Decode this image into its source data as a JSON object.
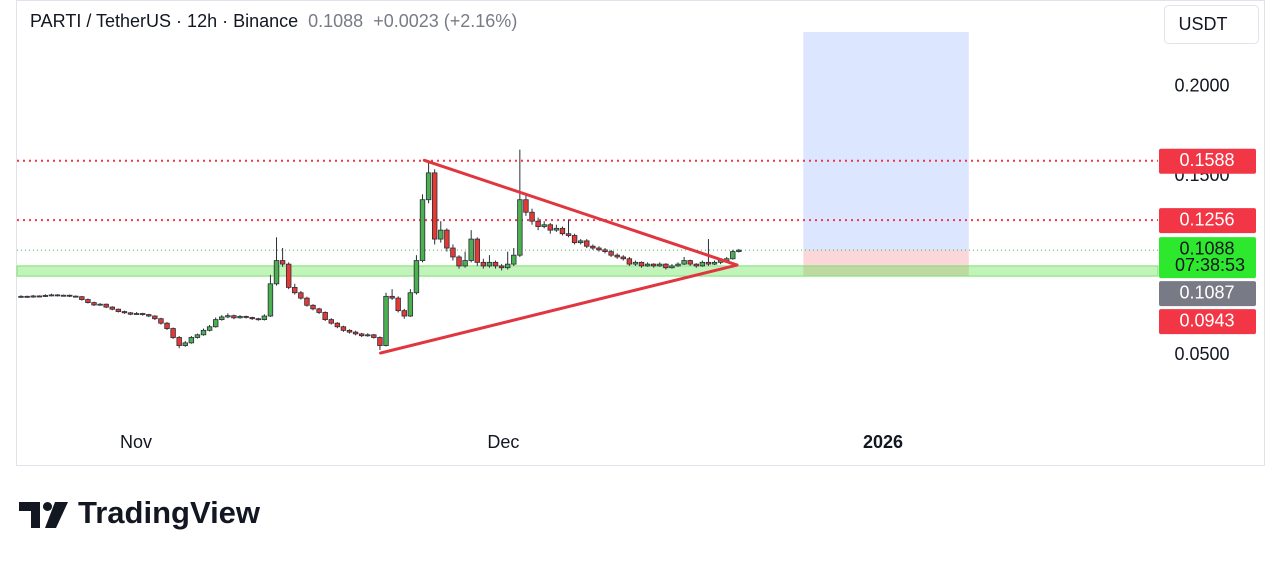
{
  "chart_data": {
    "type": "candlestick",
    "title": "PARTI / TetherUS · 12h · Binance",
    "change": "+0.0023 (+2.16%)",
    "currency": "USDT",
    "countdown": "07:38:53",
    "brand": "TradingView",
    "candle_colors": {
      "up": "#4caf50",
      "down": "#e53935"
    },
    "xlim": [
      -0.66,
      186.9
    ],
    "ylim": [
      0.0111,
      0.2486
    ],
    "yticks": [
      {
        "value": 0.2,
        "label": "0.2000"
      },
      {
        "value": 0.15,
        "label": "0.1500"
      },
      {
        "value": 0.05,
        "label": "0.0500"
      }
    ],
    "time_labels": [
      {
        "value": 18.9,
        "label": "Nov"
      },
      {
        "value": 79.3,
        "label": "Dec"
      },
      {
        "value": 141.7,
        "label": "2026"
      }
    ],
    "levels": [
      {
        "value": 0.1588,
        "color": "#f23645"
      },
      {
        "value": 0.1256,
        "color": "#f23645"
      }
    ],
    "current_price": {
      "value": 0.1088,
      "color": "#2ee82e"
    },
    "support_zone": {
      "range": [
        0.0943,
        0.1
      ],
      "color": "#f23645"
    },
    "position": {
      "entry": 0.1087,
      "target": 0.2307,
      "stop": 0.0943,
      "from": 128.6,
      "to": 155.8
    },
    "trendlines": [
      [
        [
          66.3,
          0.159
        ],
        [
          117.7,
          0.1005
        ]
      ],
      [
        [
          59.1,
          0.0513
        ],
        [
          117.7,
          0.1005
        ]
      ]
    ],
    "trendline_color": "#e0363f",
    "candles": [
      [
        0.0828,
        0.0836,
        0.0822,
        0.083
      ],
      [
        0.083,
        0.0834,
        0.0822,
        0.0826
      ],
      [
        0.0826,
        0.0838,
        0.0822,
        0.0832
      ],
      [
        0.0832,
        0.0836,
        0.0825,
        0.0829
      ],
      [
        0.0829,
        0.0842,
        0.0826,
        0.0835
      ],
      [
        0.0835,
        0.0845,
        0.083,
        0.0838
      ],
      [
        0.0838,
        0.0842,
        0.083,
        0.0834
      ],
      [
        0.0834,
        0.084,
        0.083,
        0.0836
      ],
      [
        0.0836,
        0.084,
        0.0826,
        0.0831
      ],
      [
        0.0831,
        0.0835,
        0.0824,
        0.0828
      ],
      [
        0.0828,
        0.0832,
        0.0806,
        0.0812
      ],
      [
        0.0812,
        0.0818,
        0.079,
        0.0795
      ],
      [
        0.0795,
        0.08,
        0.0776,
        0.0782
      ],
      [
        0.0782,
        0.0792,
        0.0778,
        0.0786
      ],
      [
        0.0786,
        0.079,
        0.0764,
        0.077
      ],
      [
        0.077,
        0.0775,
        0.0752,
        0.0758
      ],
      [
        0.0758,
        0.0762,
        0.074,
        0.0745
      ],
      [
        0.0745,
        0.075,
        0.0732,
        0.0738
      ],
      [
        0.0738,
        0.0742,
        0.0725,
        0.073
      ],
      [
        0.073,
        0.0742,
        0.0726,
        0.0734
      ],
      [
        0.0734,
        0.0738,
        0.0722,
        0.0728
      ],
      [
        0.0728,
        0.0732,
        0.0714,
        0.072
      ],
      [
        0.072,
        0.0724,
        0.0698,
        0.0705
      ],
      [
        0.0705,
        0.071,
        0.0672,
        0.068
      ],
      [
        0.068,
        0.0686,
        0.0642,
        0.065
      ],
      [
        0.065,
        0.0656,
        0.0592,
        0.06
      ],
      [
        0.06,
        0.0608,
        0.054,
        0.0555
      ],
      [
        0.0555,
        0.058,
        0.0548,
        0.057
      ],
      [
        0.057,
        0.0608,
        0.0565,
        0.06
      ],
      [
        0.06,
        0.0622,
        0.0594,
        0.0615
      ],
      [
        0.0615,
        0.065,
        0.061,
        0.064
      ],
      [
        0.064,
        0.067,
        0.0634,
        0.066
      ],
      [
        0.066,
        0.0712,
        0.0655,
        0.07
      ],
      [
        0.07,
        0.0725,
        0.0694,
        0.0715
      ],
      [
        0.0715,
        0.0735,
        0.0708,
        0.0722
      ],
      [
        0.0722,
        0.0728,
        0.0702,
        0.071
      ],
      [
        0.071,
        0.0725,
        0.0705,
        0.0718
      ],
      [
        0.0718,
        0.0722,
        0.0706,
        0.0712
      ],
      [
        0.0712,
        0.0716,
        0.0698,
        0.0705
      ],
      [
        0.0705,
        0.071,
        0.0694,
        0.07
      ],
      [
        0.07,
        0.073,
        0.0695,
        0.072
      ],
      [
        0.072,
        0.095,
        0.0715,
        0.09
      ],
      [
        0.09,
        0.116,
        0.089,
        0.103
      ],
      [
        0.103,
        0.11,
        0.0995,
        0.101
      ],
      [
        0.101,
        0.102,
        0.087,
        0.088
      ],
      [
        0.088,
        0.09,
        0.084,
        0.085
      ],
      [
        0.085,
        0.086,
        0.0812,
        0.082
      ],
      [
        0.082,
        0.0828,
        0.0772,
        0.078
      ],
      [
        0.078,
        0.0786,
        0.0752,
        0.076
      ],
      [
        0.076,
        0.0766,
        0.0732,
        0.074
      ],
      [
        0.074,
        0.0746,
        0.0692,
        0.07
      ],
      [
        0.07,
        0.0708,
        0.0672,
        0.068
      ],
      [
        0.068,
        0.0686,
        0.0652,
        0.066
      ],
      [
        0.066,
        0.0666,
        0.0632,
        0.064
      ],
      [
        0.064,
        0.0646,
        0.0622,
        0.063
      ],
      [
        0.063,
        0.0638,
        0.0612,
        0.062
      ],
      [
        0.062,
        0.0626,
        0.0602,
        0.061
      ],
      [
        0.061,
        0.0624,
        0.0604,
        0.0615
      ],
      [
        0.0615,
        0.062,
        0.0594,
        0.06
      ],
      [
        0.06,
        0.0606,
        0.053,
        0.0555
      ],
      [
        0.0555,
        0.085,
        0.055,
        0.083
      ],
      [
        0.083,
        0.087,
        0.081,
        0.082
      ],
      [
        0.082,
        0.083,
        0.074,
        0.075
      ],
      [
        0.075,
        0.076,
        0.0705,
        0.072
      ],
      [
        0.072,
        0.087,
        0.0715,
        0.085
      ],
      [
        0.085,
        0.106,
        0.084,
        0.103
      ],
      [
        0.103,
        0.14,
        0.102,
        0.137
      ],
      [
        0.137,
        0.159,
        0.135,
        0.152
      ],
      [
        0.152,
        0.154,
        0.112,
        0.115
      ],
      [
        0.115,
        0.125,
        0.113,
        0.12
      ],
      [
        0.12,
        0.121,
        0.108,
        0.11
      ],
      [
        0.11,
        0.112,
        0.103,
        0.105
      ],
      [
        0.105,
        0.106,
        0.0985,
        0.1
      ],
      [
        0.1,
        0.108,
        0.099,
        0.103
      ],
      [
        0.103,
        0.12,
        0.102,
        0.115
      ],
      [
        0.115,
        0.116,
        0.1,
        0.102
      ],
      [
        0.102,
        0.104,
        0.0985,
        0.1
      ],
      [
        0.1,
        0.106,
        0.099,
        0.102
      ],
      [
        0.102,
        0.103,
        0.0985,
        0.1
      ],
      [
        0.1,
        0.101,
        0.0975,
        0.099
      ],
      [
        0.099,
        0.108,
        0.098,
        0.101
      ],
      [
        0.101,
        0.11,
        0.1,
        0.106
      ],
      [
        0.106,
        0.165,
        0.105,
        0.137
      ],
      [
        0.137,
        0.14,
        0.128,
        0.13
      ],
      [
        0.13,
        0.132,
        0.123,
        0.125
      ],
      [
        0.125,
        0.127,
        0.12,
        0.122
      ],
      [
        0.122,
        0.125,
        0.121,
        0.123
      ],
      [
        0.123,
        0.124,
        0.118,
        0.12
      ],
      [
        0.12,
        0.123,
        0.119,
        0.121
      ],
      [
        0.121,
        0.122,
        0.117,
        0.118
      ],
      [
        0.118,
        0.126,
        0.116,
        0.117
      ],
      [
        0.117,
        0.118,
        0.112,
        0.113
      ],
      [
        0.113,
        0.115,
        0.112,
        0.114
      ],
      [
        0.114,
        0.115,
        0.11,
        0.111
      ],
      [
        0.111,
        0.112,
        0.109,
        0.11
      ],
      [
        0.11,
        0.111,
        0.108,
        0.109
      ],
      [
        0.109,
        0.11,
        0.107,
        0.108
      ],
      [
        0.108,
        0.109,
        0.105,
        0.106
      ],
      [
        0.106,
        0.107,
        0.104,
        0.105
      ],
      [
        0.105,
        0.106,
        0.103,
        0.104
      ],
      [
        0.104,
        0.105,
        0.1,
        0.101
      ],
      [
        0.101,
        0.103,
        0.1,
        0.102
      ],
      [
        0.102,
        0.1025,
        0.099,
        0.1
      ],
      [
        0.1,
        0.102,
        0.0995,
        0.101
      ],
      [
        0.101,
        0.1015,
        0.099,
        0.1
      ],
      [
        0.1,
        0.102,
        0.0995,
        0.101
      ],
      [
        0.101,
        0.1015,
        0.098,
        0.099
      ],
      [
        0.099,
        0.101,
        0.0985,
        0.1
      ],
      [
        0.1,
        0.102,
        0.0995,
        0.101
      ],
      [
        0.101,
        0.105,
        0.1005,
        0.103
      ],
      [
        0.103,
        0.1035,
        0.1,
        0.101
      ],
      [
        0.101,
        0.1015,
        0.099,
        0.1
      ],
      [
        0.1,
        0.103,
        0.0995,
        0.102
      ],
      [
        0.102,
        0.115,
        0.1,
        0.101
      ],
      [
        0.101,
        0.103,
        0.1005,
        0.102
      ],
      [
        0.102,
        0.104,
        0.101,
        0.103
      ],
      [
        0.103,
        0.105,
        0.102,
        0.104
      ],
      [
        0.104,
        0.109,
        0.1035,
        0.108
      ],
      [
        0.108,
        0.1095,
        0.1075,
        0.1088
      ]
    ]
  }
}
